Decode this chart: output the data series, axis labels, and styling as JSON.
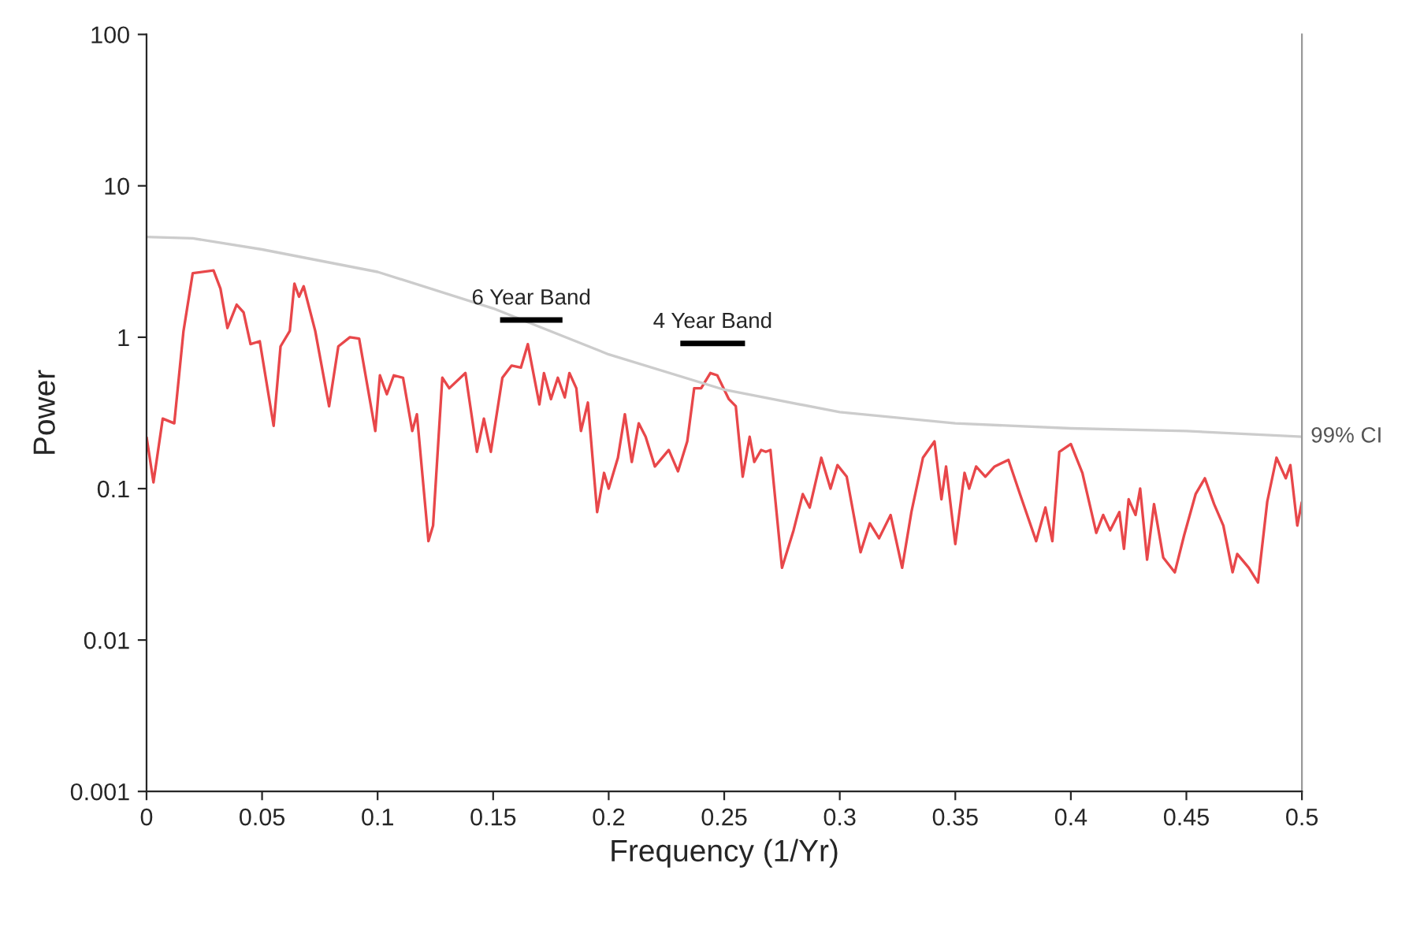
{
  "chart_data": {
    "type": "line",
    "xlabel": "Frequency (1/Yr)",
    "ylabel": "Power",
    "log": "y",
    "xlim": [
      0,
      0.5
    ],
    "xticks": [
      0,
      0.05,
      0.1,
      0.15,
      0.2,
      0.25,
      0.3,
      0.35,
      0.4,
      0.45,
      0.5
    ],
    "ylim": [
      0.001,
      100
    ],
    "yticks": [
      {
        "value": 0.001,
        "label": "0.001"
      },
      {
        "value": 0.01,
        "label": "0.01"
      },
      {
        "value": 0.1,
        "label": "0.1"
      },
      {
        "value": 1,
        "label": "1"
      },
      {
        "value": 10,
        "label": "10"
      },
      {
        "value": 100,
        "label": "100"
      }
    ],
    "grid": false,
    "legend": false,
    "marker": "none",
    "line_style": "solid",
    "series": [
      {
        "color": "#e8474a",
        "x": [
          0.0,
          0.003,
          0.007,
          0.012,
          0.016,
          0.02,
          0.029,
          0.032,
          0.035,
          0.039,
          0.042,
          0.045,
          0.049,
          0.055,
          0.058,
          0.062,
          0.064,
          0.066,
          0.068,
          0.073,
          0.079,
          0.083,
          0.088,
          0.092,
          0.099,
          0.101,
          0.104,
          0.107,
          0.111,
          0.115,
          0.117,
          0.122,
          0.124,
          0.128,
          0.131,
          0.138,
          0.143,
          0.146,
          0.149,
          0.154,
          0.158,
          0.162,
          0.165,
          0.17,
          0.172,
          0.175,
          0.178,
          0.181,
          0.183,
          0.186,
          0.188,
          0.191,
          0.195,
          0.198,
          0.2,
          0.204,
          0.207,
          0.21,
          0.213,
          0.216,
          0.22,
          0.226,
          0.23,
          0.234,
          0.237,
          0.24,
          0.244,
          0.247,
          0.252,
          0.255,
          0.258,
          0.261,
          0.263,
          0.266,
          0.268,
          0.27,
          0.275,
          0.28,
          0.284,
          0.287,
          0.292,
          0.296,
          0.299,
          0.303,
          0.309,
          0.313,
          0.317,
          0.322,
          0.327,
          0.331,
          0.336,
          0.341,
          0.344,
          0.346,
          0.35,
          0.354,
          0.356,
          0.359,
          0.363,
          0.367,
          0.373,
          0.378,
          0.385,
          0.389,
          0.392,
          0.395,
          0.4,
          0.405,
          0.411,
          0.414,
          0.417,
          0.421,
          0.423,
          0.425,
          0.428,
          0.43,
          0.433,
          0.436,
          0.44,
          0.445,
          0.449,
          0.454,
          0.458,
          0.462,
          0.466,
          0.47,
          0.472,
          0.477,
          0.481,
          0.485,
          0.489,
          0.493,
          0.495,
          0.498,
          0.5
        ],
        "values": [
          0.22,
          0.11,
          0.29,
          0.27,
          1.1,
          2.65,
          2.76,
          2.09,
          1.15,
          1.64,
          1.46,
          0.9,
          0.94,
          0.26,
          0.87,
          1.1,
          2.26,
          1.85,
          2.17,
          1.1,
          0.35,
          0.87,
          1.0,
          0.98,
          0.24,
          0.56,
          0.42,
          0.56,
          0.54,
          0.24,
          0.31,
          0.045,
          0.057,
          0.54,
          0.46,
          0.58,
          0.175,
          0.29,
          0.175,
          0.54,
          0.65,
          0.63,
          0.9,
          0.36,
          0.58,
          0.39,
          0.54,
          0.4,
          0.58,
          0.46,
          0.24,
          0.37,
          0.07,
          0.127,
          0.1,
          0.16,
          0.31,
          0.15,
          0.27,
          0.22,
          0.14,
          0.18,
          0.13,
          0.205,
          0.46,
          0.46,
          0.58,
          0.56,
          0.39,
          0.35,
          0.12,
          0.22,
          0.15,
          0.18,
          0.175,
          0.18,
          0.03,
          0.053,
          0.092,
          0.075,
          0.16,
          0.1,
          0.143,
          0.12,
          0.038,
          0.059,
          0.047,
          0.067,
          0.03,
          0.07,
          0.16,
          0.205,
          0.085,
          0.14,
          0.043,
          0.127,
          0.1,
          0.14,
          0.12,
          0.14,
          0.155,
          0.092,
          0.045,
          0.075,
          0.045,
          0.175,
          0.197,
          0.127,
          0.051,
          0.067,
          0.053,
          0.07,
          0.04,
          0.085,
          0.067,
          0.1,
          0.034,
          0.079,
          0.035,
          0.028,
          0.049,
          0.092,
          0.117,
          0.079,
          0.057,
          0.028,
          0.037,
          0.03,
          0.024,
          0.082,
          0.16,
          0.117,
          0.143,
          0.057,
          0.082
        ]
      },
      {
        "color": "#cccccc",
        "x": [
          0,
          0.02,
          0.05,
          0.1,
          0.15,
          0.2,
          0.25,
          0.3,
          0.35,
          0.4,
          0.45,
          0.5
        ],
        "values": [
          4.6,
          4.5,
          3.8,
          2.7,
          1.55,
          0.77,
          0.45,
          0.32,
          0.27,
          0.25,
          0.24,
          0.22
        ]
      },
      {
        "color": "#000000",
        "x": [
          0.153,
          0.18
        ],
        "values": [
          1.3,
          1.3
        ]
      },
      {
        "color": "#000000",
        "x": [
          0.231,
          0.259
        ],
        "values": [
          0.91,
          0.91
        ]
      }
    ],
    "annotations": [
      {
        "text": "99% CI",
        "x": 0.5,
        "y": 0.22
      },
      {
        "text": "6 Year Band",
        "x": 0.1665,
        "y": 1.3
      },
      {
        "text": "4 Year Band",
        "x": 0.245,
        "y": 0.91
      }
    ]
  }
}
